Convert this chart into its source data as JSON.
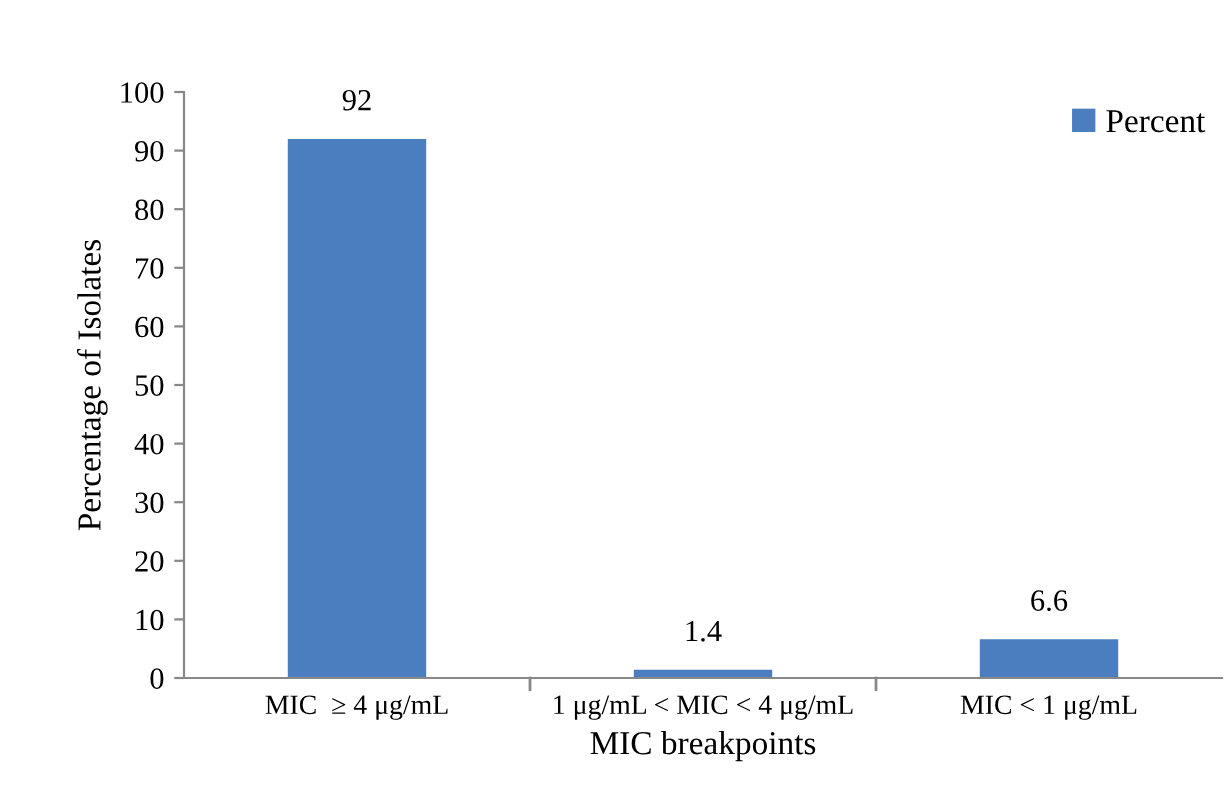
{
  "chart_data": {
    "type": "bar",
    "xlabel": "MIC breakpoints",
    "ylabel": "Percentage of Isolates",
    "categories": [
      "MIC  ≥ 4 μg/mL",
      "1 μg/mL < MIC < 4 μg/mL",
      "MIC < 1 μg/mL"
    ],
    "series": [
      {
        "name": "Percent",
        "color": "#4a7ebf",
        "values": [
          92,
          1.4,
          6.6
        ]
      }
    ],
    "ylim": [
      0,
      100
    ],
    "yticks": [
      0,
      10,
      20,
      30,
      40,
      50,
      60,
      70,
      80,
      90,
      100
    ],
    "data_labels": true,
    "grid": false,
    "legend": "top right"
  }
}
